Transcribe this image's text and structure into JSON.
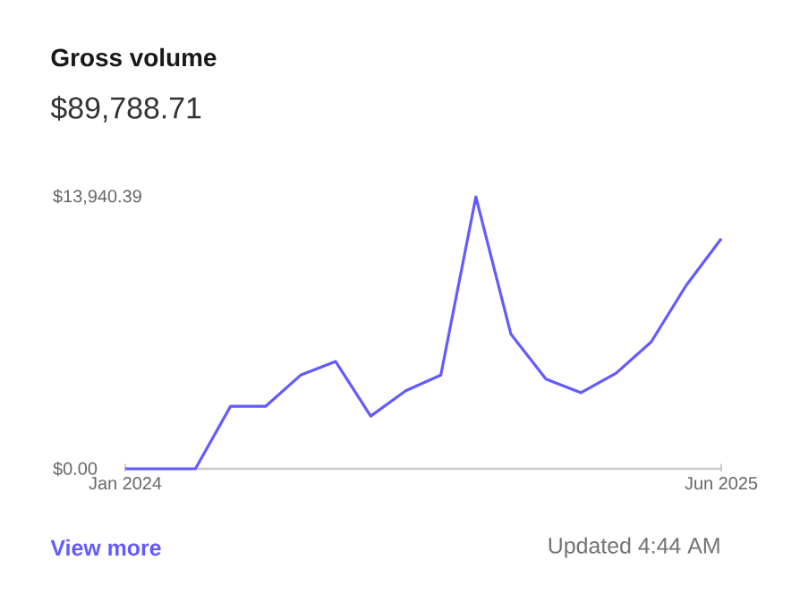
{
  "chart_data": {
    "type": "line",
    "title": "Gross volume",
    "subtitle": "$89,788.71",
    "annotations": [
      "View more",
      "Updated 4:44 AM"
    ],
    "x": [
      "2024-01",
      "2024-02",
      "2024-03",
      "2024-04",
      "2024-05",
      "2024-06",
      "2024-07",
      "2024-08",
      "2024-09",
      "2024-10",
      "2024-11",
      "2024-12",
      "2025-01",
      "2025-02",
      "2025-03",
      "2025-04",
      "2025-05",
      "2025-06"
    ],
    "values": [
      0,
      0,
      0,
      3200,
      3200,
      4800,
      5500,
      2700,
      4000,
      4800,
      13940.39,
      6900,
      4600,
      3900,
      4900,
      6500,
      9400,
      11800
    ],
    "color": "#635bff",
    "marker": "none",
    "line_style": "solid",
    "xlim": [
      "2024-01",
      "2025-06"
    ],
    "xticks": [
      {
        "value": "2024-01",
        "label": "Jan 2024"
      },
      {
        "value": "2025-06",
        "label": "Jun 2025"
      }
    ],
    "ylim": [
      0,
      13940.39
    ],
    "yticks": [
      {
        "value": 0,
        "label": "$0.00"
      },
      {
        "value": 13940.39,
        "label": "$13,940.39"
      }
    ]
  }
}
